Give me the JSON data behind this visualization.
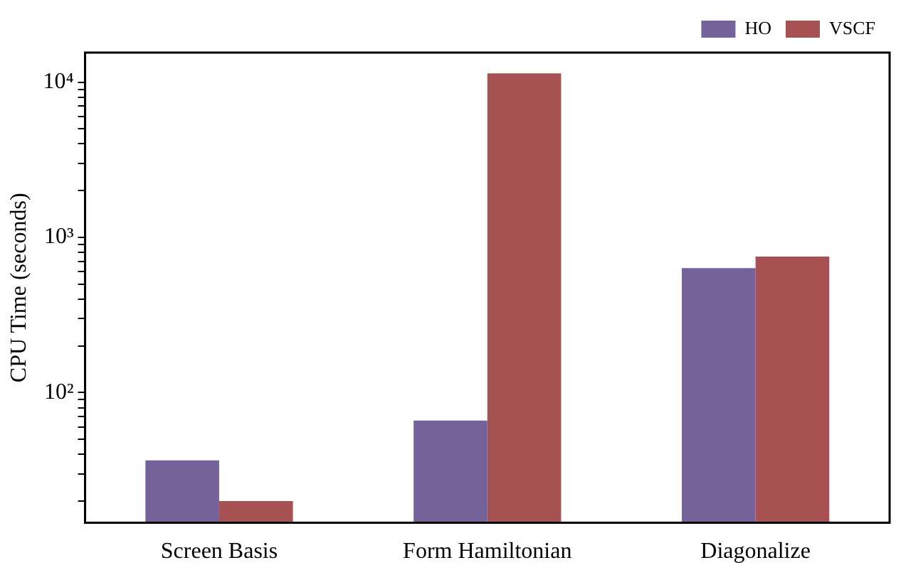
{
  "chart_data": {
    "type": "bar",
    "ylabel": "CPU Time (seconds)",
    "categories": [
      "Screen Basis",
      "Form Hamiltonian",
      "Diagonalize"
    ],
    "series": [
      {
        "name": "HO",
        "color": "#76629a",
        "values": [
          36.6,
          66,
          634
        ]
      },
      {
        "name": "VSCF",
        "color": "#a75152",
        "values": [
          20,
          11400,
          753
        ]
      }
    ],
    "log": "y",
    "ylim": [
      14.5,
      15500
    ],
    "yticks": [
      {
        "value": 20,
        "label": null
      },
      {
        "value": 30,
        "label": null
      },
      {
        "value": 40,
        "label": null
      },
      {
        "value": 50,
        "label": null
      },
      {
        "value": 60,
        "label": null
      },
      {
        "value": 70,
        "label": null
      },
      {
        "value": 80,
        "label": null
      },
      {
        "value": 90,
        "label": null
      },
      {
        "value": 100,
        "label": "10²"
      },
      {
        "value": 200,
        "label": null
      },
      {
        "value": 300,
        "label": null
      },
      {
        "value": 400,
        "label": null
      },
      {
        "value": 500,
        "label": null
      },
      {
        "value": 600,
        "label": null
      },
      {
        "value": 700,
        "label": null
      },
      {
        "value": 800,
        "label": null
      },
      {
        "value": 900,
        "label": null
      },
      {
        "value": 1000,
        "label": "10³"
      },
      {
        "value": 2000,
        "label": null
      },
      {
        "value": 3000,
        "label": null
      },
      {
        "value": 4000,
        "label": null
      },
      {
        "value": 5000,
        "label": null
      },
      {
        "value": 6000,
        "label": null
      },
      {
        "value": 7000,
        "label": null
      },
      {
        "value": 8000,
        "label": null
      },
      {
        "value": 9000,
        "label": null
      },
      {
        "value": 10000,
        "label": "10⁴"
      }
    ],
    "grid": false,
    "legend": "top right"
  }
}
